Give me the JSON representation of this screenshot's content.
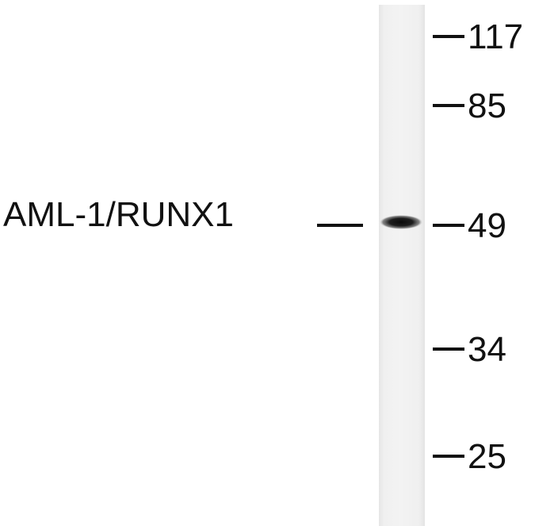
{
  "blot": {
    "protein_label": "AML-1/RUNX1",
    "band_kda": 49,
    "markers": [
      {
        "label": "117",
        "kda": 117
      },
      {
        "label": "85",
        "kda": 85
      },
      {
        "label": "49",
        "kda": 49
      },
      {
        "label": "34",
        "kda": 34
      },
      {
        "label": "25",
        "kda": 25
      }
    ]
  },
  "colors": {
    "lane": "#efefef",
    "band": "#141414",
    "text": "#111111"
  }
}
